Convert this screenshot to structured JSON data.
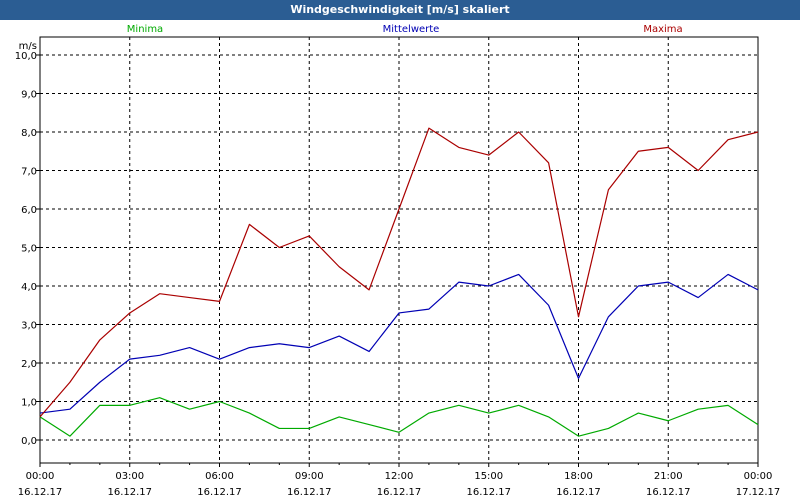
{
  "window": {
    "title": "Windgeschwindigkeit [m/s] skaliert"
  },
  "chart_data": {
    "type": "line",
    "title": "Windgeschwindigkeit [m/s] skaliert",
    "ylabel": "m/s",
    "ylim": [
      0,
      10
    ],
    "y_ticks": [
      "0,0",
      "1,0",
      "2,0",
      "3,0",
      "4,0",
      "5,0",
      "6,0",
      "7,0",
      "8,0",
      "9,0",
      "10,0"
    ],
    "xlim": [
      "16.12.17 00:00",
      "17.12.17 00:00"
    ],
    "x_ticks": [
      {
        "time": "00:00",
        "date": "16.12.17"
      },
      {
        "time": "03:00",
        "date": "16.12.17"
      },
      {
        "time": "06:00",
        "date": "16.12.17"
      },
      {
        "time": "09:00",
        "date": "16.12.17"
      },
      {
        "time": "12:00",
        "date": "16.12.17"
      },
      {
        "time": "15:00",
        "date": "16.12.17"
      },
      {
        "time": "18:00",
        "date": "16.12.17"
      },
      {
        "time": "21:00",
        "date": "16.12.17"
      },
      {
        "time": "00:00",
        "date": "17.12.17"
      }
    ],
    "grid": true,
    "legend_position": "top",
    "x_hours": [
      0,
      1,
      2,
      3,
      4,
      5,
      6,
      7,
      8,
      9,
      10,
      11,
      12,
      13,
      14,
      15,
      16,
      17,
      18,
      19,
      20,
      21,
      22,
      23,
      24
    ],
    "series": [
      {
        "name": "Minima",
        "color": "#00aa00",
        "values": [
          0.6,
          0.1,
          0.9,
          0.9,
          1.1,
          0.8,
          1.0,
          0.7,
          0.3,
          0.3,
          0.6,
          0.4,
          0.2,
          0.7,
          0.9,
          0.7,
          0.9,
          0.6,
          0.1,
          0.3,
          0.7,
          0.5,
          0.8,
          0.9,
          0.4
        ]
      },
      {
        "name": "Mittelwerte",
        "color": "#0000b4",
        "values": [
          0.7,
          0.8,
          1.5,
          2.1,
          2.2,
          2.4,
          2.1,
          2.4,
          2.5,
          2.4,
          2.7,
          2.3,
          3.3,
          3.4,
          4.1,
          4.0,
          4.3,
          3.5,
          1.6,
          3.2,
          4.0,
          4.1,
          3.7,
          4.3,
          3.9
        ]
      },
      {
        "name": "Maxima",
        "color": "#aa0000",
        "values": [
          0.6,
          1.5,
          2.6,
          3.3,
          3.8,
          3.7,
          3.6,
          5.6,
          5.0,
          5.3,
          4.5,
          3.9,
          6.0,
          8.1,
          7.6,
          7.4,
          8.0,
          7.2,
          3.2,
          6.5,
          7.5,
          7.6,
          7.0,
          7.8,
          8.0
        ]
      }
    ]
  }
}
